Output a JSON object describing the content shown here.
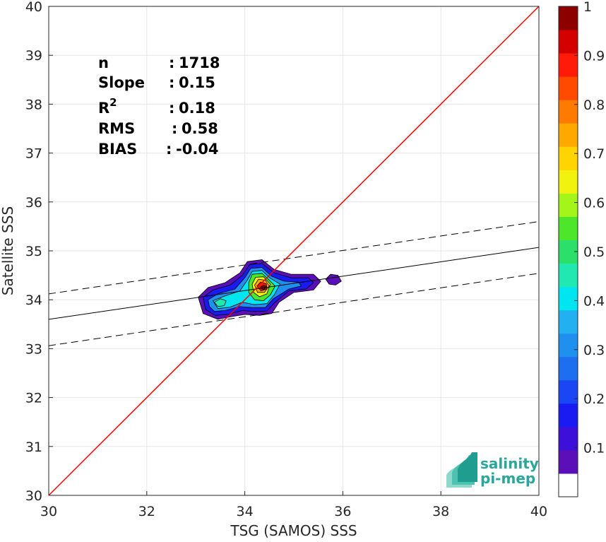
{
  "chart_data": {
    "type": "scatter",
    "subtype": "density-contour",
    "xlabel": "TSG (SAMOS) SSS",
    "ylabel": "Satellite SSS",
    "xlim": [
      30,
      40
    ],
    "ylim": [
      30,
      40
    ],
    "x_ticks": [
      30,
      32,
      34,
      36,
      38,
      40
    ],
    "y_ticks": [
      30,
      31,
      32,
      33,
      34,
      35,
      36,
      37,
      38,
      39,
      40
    ],
    "grid": true,
    "stats": [
      {
        "label": "n",
        "sep": ":",
        "value": "1718"
      },
      {
        "label": "Slope",
        "sep": ":",
        "value": "0.15"
      },
      {
        "label": "R",
        "sup": "2",
        "sep": ":",
        "value": "0.18"
      },
      {
        "label": "RMS",
        "sep": ":",
        "value": "0.58"
      },
      {
        "label": "BIAS",
        "sep": ":",
        "value": "-0.04"
      }
    ],
    "identity_line": {
      "x": [
        30,
        40
      ],
      "y": [
        30,
        40
      ],
      "color": "#ff0000"
    },
    "regression_line": {
      "x": [
        30,
        40
      ],
      "y": [
        33.6,
        35.07
      ],
      "color": "#000000"
    },
    "regression_bounds": [
      {
        "x": [
          30,
          40
        ],
        "y": [
          34.12,
          35.6
        ]
      },
      {
        "x": [
          30,
          40
        ],
        "y": [
          33.06,
          34.54
        ]
      }
    ],
    "density_peak": {
      "x": 34.4,
      "y": 34.25
    },
    "colorbar": {
      "min": 0,
      "max": 1,
      "ticks": [
        0.1,
        0.2,
        0.3,
        0.4,
        0.5,
        0.6,
        0.7,
        0.8,
        0.9,
        1
      ],
      "tick_labels": [
        "0.1",
        "0.2",
        "0.3",
        "0.4",
        "0.5",
        "0.6",
        "0.7",
        "0.8",
        "0.9",
        "1"
      ],
      "levels": 20,
      "colors": [
        "#ffffff",
        "#5b0fb8",
        "#3c10d8",
        "#1a1af2",
        "#1a46f4",
        "#1e6ef0",
        "#1f90ee",
        "#22b0f0",
        "#00e6f0",
        "#20e8b0",
        "#2adf6a",
        "#4ee62a",
        "#a3f51a",
        "#f2f20f",
        "#ffd400",
        "#ffa800",
        "#ff7a00",
        "#ff4a00",
        "#ff1a0a",
        "#d40000",
        "#8c0000"
      ]
    }
  },
  "logo": {
    "line1": "salinity",
    "line2": "pi-mep",
    "color": "#2aa79b"
  }
}
